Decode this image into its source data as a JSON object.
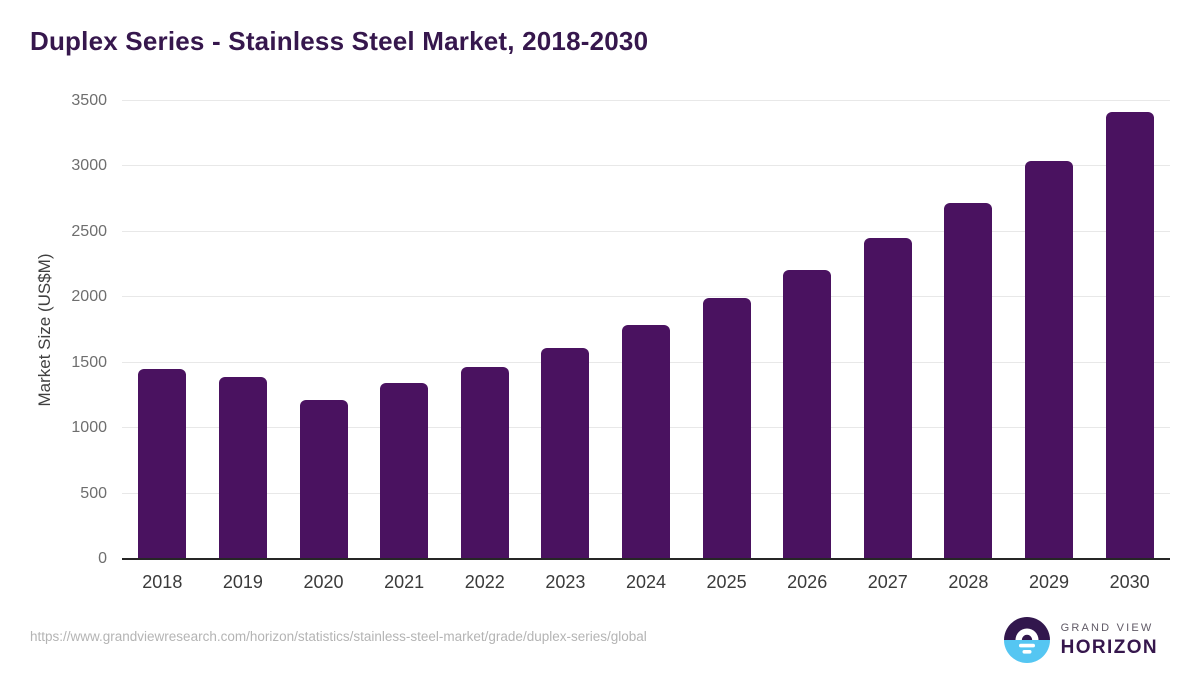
{
  "page": {
    "title": "Duplex Series - Stainless Steel Market, 2018-2030"
  },
  "chart_data": {
    "type": "bar",
    "title": "Duplex Series - Stainless Steel Market, 2018-2030",
    "categories": [
      "2018",
      "2019",
      "2020",
      "2021",
      "2022",
      "2023",
      "2024",
      "2025",
      "2026",
      "2027",
      "2028",
      "2029",
      "2030"
    ],
    "values": [
      1455,
      1390,
      1215,
      1345,
      1465,
      1610,
      1790,
      1995,
      2210,
      2450,
      2720,
      3045,
      3415
    ],
    "xlabel": "",
    "ylabel": "Market Size (US$M)",
    "ylim": [
      0,
      3500
    ],
    "yticks": [
      0,
      500,
      1000,
      1500,
      2000,
      2500,
      3000,
      3500
    ],
    "grid": "horizontal",
    "legend": "none",
    "bar_color": "#4a1260",
    "gridline_color": "#e8e8e8",
    "axis_color": "#262626"
  },
  "footer": {
    "source_url": "https://www.grandviewresearch.com/horizon/statistics/stainless-steel-market/grade/duplex-series/global",
    "brand": {
      "line1": "GRAND VIEW",
      "line2": "HORIZON",
      "icon_purple": "#32174d",
      "icon_blue": "#55c6f2"
    }
  }
}
